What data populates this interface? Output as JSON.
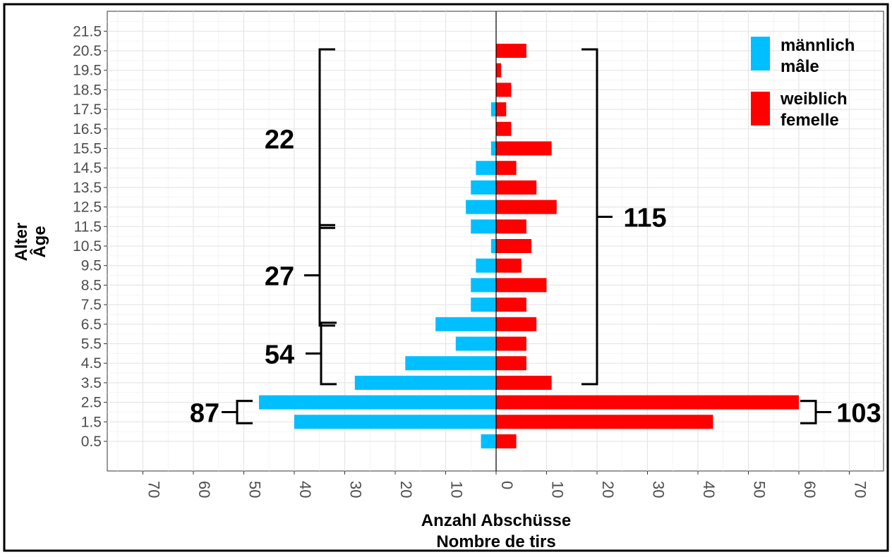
{
  "chart_data": {
    "type": "bar",
    "orientation": "horizontal-population-pyramid",
    "ylabel_line1": "Alter",
    "ylabel_line2": "Âge",
    "xlabel_line1": "Anzahl Abschüsse",
    "xlabel_line2": "Nombre de tirs",
    "categories": [
      "0.5",
      "1.5",
      "2.5",
      "3.5",
      "4.5",
      "5.5",
      "6.5",
      "7.5",
      "8.5",
      "9.5",
      "10.5",
      "11.5",
      "12.5",
      "13.5",
      "14.5",
      "15.5",
      "16.5",
      "17.5",
      "18.5",
      "19.5",
      "20.5",
      "21.5"
    ],
    "x_tick_labels": [
      "70",
      "60",
      "50",
      "40",
      "30",
      "20",
      "10",
      "0",
      "10",
      "20",
      "30",
      "40",
      "50",
      "60",
      "70"
    ],
    "xlim": [
      -77,
      77
    ],
    "grid": true,
    "legend_position": "top-right",
    "series": [
      {
        "name": "männlich mâle",
        "legend_line1": "männlich",
        "legend_line2": "mâle",
        "color": "#00BFFF",
        "side": "left",
        "values": [
          3,
          40,
          47,
          28,
          18,
          8,
          12,
          5,
          5,
          4,
          1,
          5,
          6,
          5,
          4,
          1,
          0,
          1,
          0,
          0,
          0,
          0
        ]
      },
      {
        "name": "weiblich femelle",
        "legend_line1": "weiblich",
        "legend_line2": "femelle",
        "color": "#FF0000",
        "side": "right",
        "values": [
          4,
          43,
          60,
          11,
          6,
          6,
          8,
          6,
          10,
          5,
          7,
          6,
          12,
          8,
          4,
          11,
          3,
          2,
          3,
          1,
          6,
          0
        ]
      }
    ],
    "annotations": [
      {
        "label": "22",
        "side": "left",
        "from_age": 11.5,
        "to_age": 20.5
      },
      {
        "label": "27",
        "side": "left",
        "from_age": 6.5,
        "to_age": 11.5
      },
      {
        "label": "54",
        "side": "left",
        "from_age": 3.5,
        "to_age": 6.5
      },
      {
        "label": "87",
        "side": "left",
        "from_age": 1.5,
        "to_age": 2.5
      },
      {
        "label": "115",
        "side": "right",
        "from_age": 3.5,
        "to_age": 20.5
      },
      {
        "label": "103",
        "side": "right",
        "from_age": 1.5,
        "to_age": 2.5
      }
    ]
  }
}
